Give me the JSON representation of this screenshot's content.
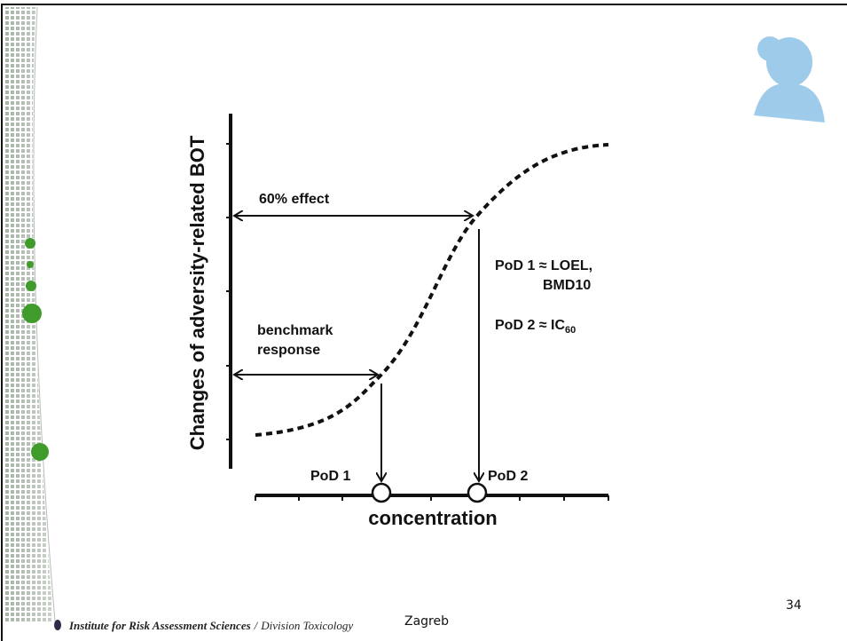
{
  "diagram": {
    "y_axis_label": "Changes of adversity-related BOT",
    "x_axis_label": "concentration",
    "annotations": {
      "effect_60": "60% effect",
      "benchmark_response": [
        "benchmark",
        "response"
      ],
      "pod1_marker": "PoD 1",
      "pod2_marker": "PoD 2",
      "pod1_definition": [
        "PoD 1 ≈ LOEL,",
        "BMD10"
      ],
      "pod2_definition": {
        "text": "PoD 2 ≈ IC",
        "subscript": "60"
      }
    }
  },
  "footer": {
    "institute": "Institute for Risk Assessment Sciences",
    "separator": "/",
    "division": "Division Toxicology",
    "location": "Zagreb",
    "page_number": "34"
  }
}
